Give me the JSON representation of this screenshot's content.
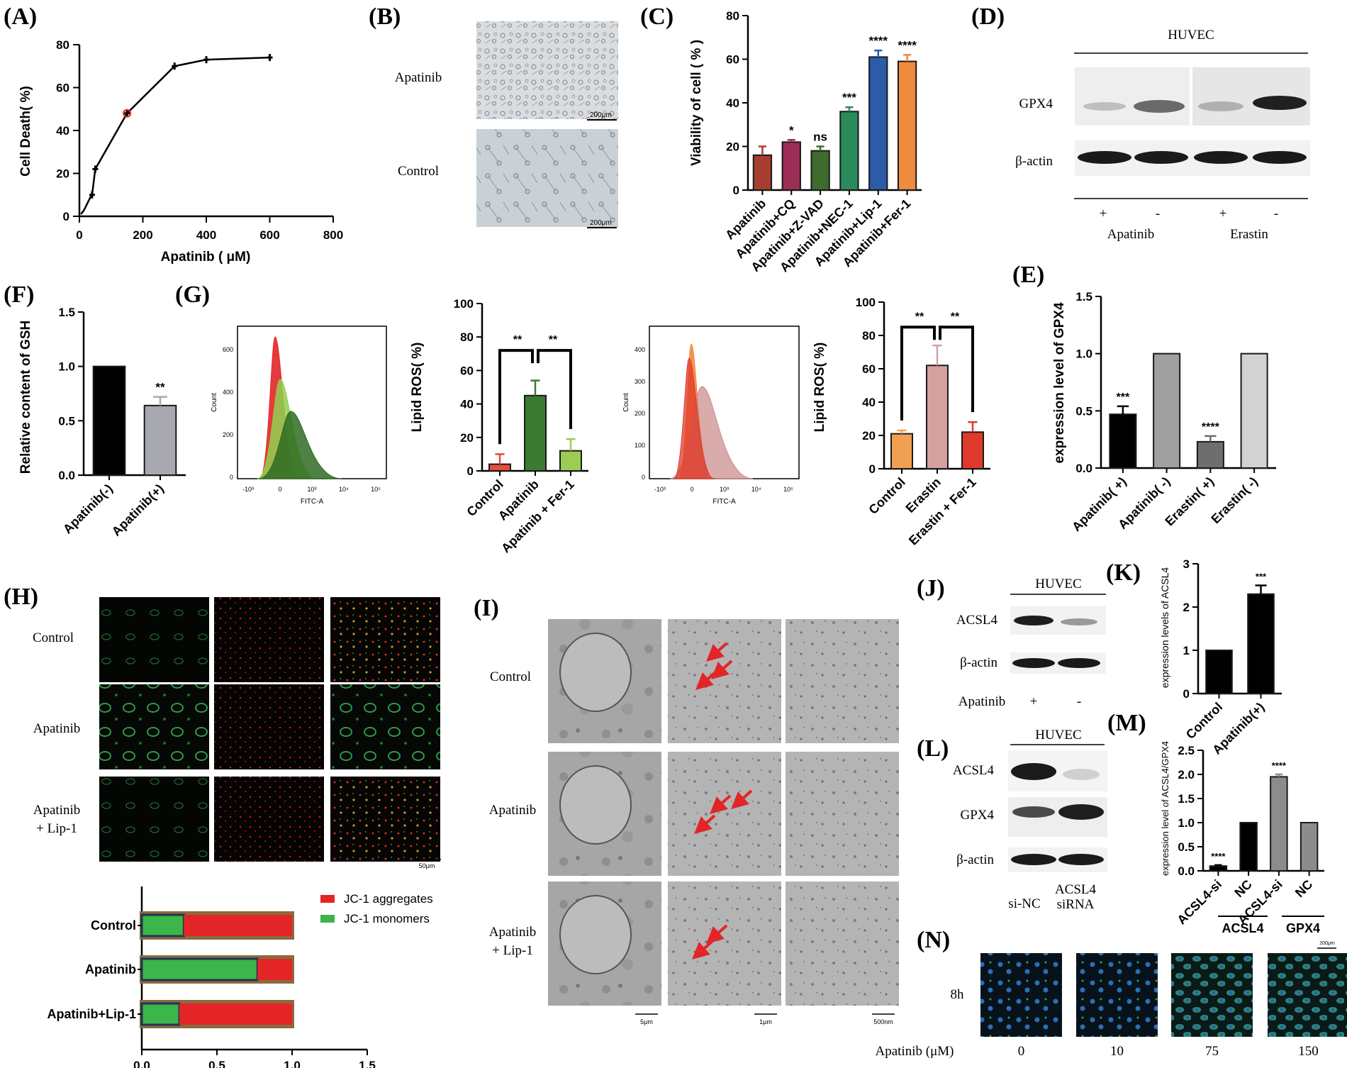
{
  "panels": {
    "A": {
      "label": "(A)",
      "ylabel": "Cell Death( %)",
      "xlabel": "Apatinib ( μM)"
    },
    "B": {
      "label": "(B)",
      "rows": [
        "Apatinib",
        "Control"
      ],
      "scale": "200μm"
    },
    "C": {
      "label": "(C)",
      "ylabel": "Viability of cell ( % )"
    },
    "D": {
      "label": "(D)",
      "title": "HUVEC",
      "rows": [
        "GPX4",
        "β-actin"
      ],
      "signs": [
        "+",
        "-",
        "+",
        "-"
      ],
      "groups": [
        "Apatinib",
        "Erastin"
      ]
    },
    "E": {
      "label": "(E)",
      "ylabel": "expression level of GPX4"
    },
    "F": {
      "label": "(F)",
      "ylabel": "Relative content of GSH"
    },
    "G": {
      "label": "(G)",
      "ylabel": "Lipid ROS( %)",
      "flow_xlabel": "FITC-A",
      "flow_ylabel": "Count",
      "flow_xticks": [
        "-10³",
        "0",
        "10³",
        "10⁴",
        "10⁵"
      ],
      "flow1_yticks": [
        "0",
        "200",
        "400",
        "600"
      ],
      "flow2_yticks": [
        "0",
        "100",
        "200",
        "300",
        "400"
      ]
    },
    "H": {
      "label": "(H)",
      "rows": [
        "Control",
        "Apatinib",
        "Apatinib",
        "+ Lip-1"
      ],
      "scale": "50μm",
      "legend": [
        "JC-1 aggregates",
        "JC-1 monomers"
      ]
    },
    "I": {
      "label": "(I)",
      "rows": [
        "Control",
        "Apatinib",
        "Apatinib",
        "+ Lip-1"
      ],
      "scales": [
        "5μm",
        "1μm",
        "500nm"
      ]
    },
    "J": {
      "label": "(J)",
      "title": "HUVEC",
      "rows": [
        "ACSL4",
        "β-actin"
      ],
      "group": "Apatinib",
      "signs": [
        "+",
        "-"
      ]
    },
    "K": {
      "label": "(K)",
      "ylabel": "expression levels of ACSL4"
    },
    "L": {
      "label": "(L)",
      "title": "HUVEC",
      "rows": [
        "ACSL4",
        "GPX4",
        "β-actin"
      ],
      "lanes": [
        "si-NC",
        "ACSL4",
        "siRNA"
      ]
    },
    "M": {
      "label": "(M)",
      "ylabel": "expression level of ACSL4/GPX4",
      "groups": [
        "ACSL4",
        "GPX4"
      ]
    },
    "N": {
      "label": "(N)",
      "row": "8h",
      "xlabel": "Apatinib  (μM)",
      "doses": [
        "0",
        "10",
        "75",
        "150"
      ],
      "scale": "200μm"
    }
  },
  "colors": {
    "red": "#e32527",
    "green": "#3cb54a",
    "brown": "#8b6a3e",
    "navy": "#1f3554"
  },
  "chart_data": [
    {
      "panel": "A",
      "type": "line",
      "x": [
        5,
        15,
        25,
        35,
        40,
        50,
        150,
        300,
        400,
        600
      ],
      "y": [
        1,
        3,
        6,
        9,
        10,
        22,
        48,
        70,
        73,
        74
      ],
      "highlight": [
        150,
        48
      ],
      "xlim": [
        0,
        800
      ],
      "ylim": [
        0,
        80
      ],
      "xticks": [
        "0",
        "200",
        "400",
        "600",
        "800"
      ],
      "yticks": [
        "0",
        "20",
        "40",
        "60",
        "80"
      ]
    },
    {
      "panel": "C",
      "type": "bar",
      "categories": [
        "Apatinib",
        "Apatinib+CQ",
        "Apatinib+Z-VAD",
        "Apatinib+NEC-1",
        "Apatinib+Lip-1",
        "Apatinib+Fer-1"
      ],
      "values": [
        16,
        22,
        18,
        36,
        61,
        59
      ],
      "errors": [
        4,
        1,
        2,
        2,
        3,
        3
      ],
      "sig": [
        "",
        "*",
        "ns",
        "***",
        "****",
        "****"
      ],
      "colors": [
        "#a63d2f",
        "#9c2d55",
        "#3e6b2e",
        "#2a8a5a",
        "#2c5ca8",
        "#f08a3c"
      ],
      "ylim": [
        0,
        80
      ],
      "yticks": [
        "0",
        "20",
        "40",
        "60",
        "80"
      ]
    },
    {
      "panel": "E",
      "type": "bar",
      "categories": [
        "Apatinib( +)",
        "Apatinib( -)",
        "Erastin( +)",
        "Erastin( -)"
      ],
      "values": [
        0.47,
        1.0,
        0.23,
        1.0
      ],
      "errors": [
        0.07,
        0,
        0.05,
        0
      ],
      "sig": [
        "***",
        "",
        "****",
        ""
      ],
      "colors": [
        "#000000",
        "#a0a0a0",
        "#6e6e6e",
        "#d2d2d2"
      ],
      "ylim": [
        0,
        1.5
      ],
      "yticks": [
        "0.0",
        "0.5",
        "1.0",
        "1.5"
      ]
    },
    {
      "panel": "F",
      "type": "bar",
      "categories": [
        "Apatinib(-)",
        "Apatinib(+)"
      ],
      "values": [
        1.0,
        0.64
      ],
      "errors": [
        0,
        0.08
      ],
      "sig": [
        "",
        "**"
      ],
      "colors": [
        "#000000",
        "#a8a8b0"
      ],
      "ylim": [
        0,
        1.5
      ],
      "yticks": [
        "0.0",
        "0.5",
        "1.0",
        "1.5"
      ]
    },
    {
      "panel": "G1",
      "type": "bar",
      "categories": [
        "Control",
        "Apatinib",
        "Apatinib + Fer-1"
      ],
      "values": [
        4,
        45,
        12
      ],
      "errors": [
        6,
        9,
        7
      ],
      "sig": [
        "**",
        "**"
      ],
      "colors": [
        "#e74c3c",
        "#3b7a32",
        "#9ccc55"
      ],
      "ylim": [
        0,
        100
      ],
      "yticks": [
        "0",
        "20",
        "40",
        "60",
        "80",
        "100"
      ]
    },
    {
      "panel": "G2",
      "type": "bar",
      "categories": [
        "Control",
        "Erastin",
        "Erastin + Fer-1"
      ],
      "values": [
        21,
        62,
        22
      ],
      "errors": [
        2,
        12,
        6
      ],
      "sig": [
        "**",
        "**"
      ],
      "colors": [
        "#f0a050",
        "#d4a0a0",
        "#e03a2c"
      ],
      "ylim": [
        0,
        100
      ],
      "yticks": [
        "0",
        "20",
        "40",
        "60",
        "80",
        "100"
      ]
    },
    {
      "panel": "H",
      "type": "bar",
      "categories": [
        "Control",
        "Apatinib",
        "Apatinib+Lip-1"
      ],
      "series": [
        {
          "name": "JC-1 monomers",
          "values": [
            0.28,
            0.77,
            0.25
          ]
        },
        {
          "name": "JC-1 aggregates",
          "values": [
            0.72,
            0.23,
            0.75
          ]
        }
      ],
      "xlim": [
        0,
        1.5
      ],
      "xticks": [
        "0.0",
        "0.5",
        "1.0",
        "1.5"
      ]
    },
    {
      "panel": "K",
      "type": "bar",
      "categories": [
        "Control",
        "Apatinib(+)"
      ],
      "values": [
        1.0,
        2.3
      ],
      "errors": [
        0,
        0.2
      ],
      "sig": [
        "",
        "***"
      ],
      "colors": [
        "#000000",
        "#000000"
      ],
      "ylim": [
        0,
        3
      ],
      "yticks": [
        "0",
        "1",
        "2",
        "3"
      ]
    },
    {
      "panel": "M",
      "type": "bar",
      "categories": [
        "ACSL4-si",
        "NC",
        "ACSL4-si",
        "NC"
      ],
      "values": [
        0.1,
        1.0,
        1.95,
        1.0
      ],
      "errors": [
        0.02,
        0,
        0.05,
        0
      ],
      "sig": [
        "****",
        "",
        "****",
        ""
      ],
      "colors": [
        "#000000",
        "#000000",
        "#8c8c8c",
        "#8c8c8c"
      ],
      "ylim": [
        0,
        2.5
      ],
      "yticks": [
        "0.0",
        "0.5",
        "1.0",
        "1.5",
        "2.0",
        "2.5"
      ]
    }
  ]
}
